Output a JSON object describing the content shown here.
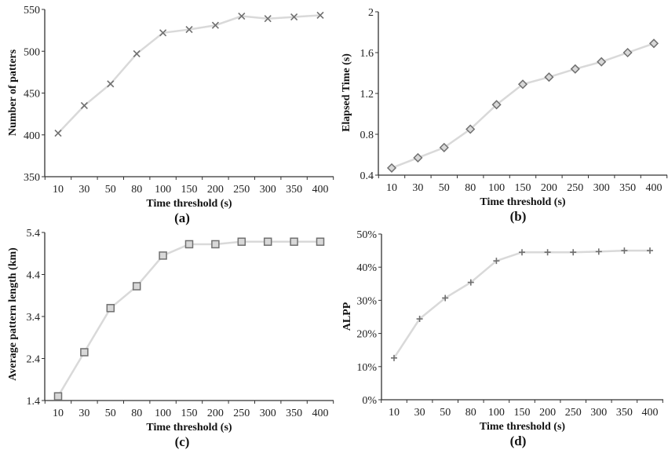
{
  "chart_data": [
    {
      "type": "line",
      "panel_label": "(a)",
      "xlabel": "Time threshold (s)",
      "ylabel": "Number of patters",
      "categories": [
        "10",
        "30",
        "50",
        "80",
        "100",
        "150",
        "200",
        "250",
        "300",
        "350",
        "400"
      ],
      "values": [
        402,
        435,
        461,
        497,
        522,
        526,
        531,
        542,
        539,
        541,
        543
      ],
      "ylim": [
        350,
        550
      ],
      "yticks": [
        350,
        400,
        450,
        500,
        550
      ],
      "ytick_labels": [
        "350",
        "400",
        "450",
        "500",
        "550"
      ],
      "marker": "x-cross",
      "grid": false,
      "line_color": "#d9d9d9",
      "marker_color": "#707070"
    },
    {
      "type": "line",
      "panel_label": "(b)",
      "xlabel": "Time threshold (s)",
      "ylabel": "Elapsed Time (s)",
      "categories": [
        "10",
        "30",
        "50",
        "80",
        "100",
        "150",
        "200",
        "250",
        "300",
        "350",
        "400"
      ],
      "values": [
        0.47,
        0.57,
        0.67,
        0.85,
        1.09,
        1.29,
        1.36,
        1.44,
        1.51,
        1.6,
        1.69
      ],
      "ylim": [
        0.4,
        2.0
      ],
      "yticks": [
        0.4,
        0.8,
        1.2,
        1.6,
        2.0
      ],
      "ytick_labels": [
        "0.4",
        "0.8",
        "1.2",
        "1.6",
        "2"
      ],
      "marker": "diamond",
      "grid": false,
      "line_color": "#d9d9d9",
      "marker_color": "#707070"
    },
    {
      "type": "line",
      "panel_label": "(c)",
      "xlabel": "Time threshold (s)",
      "ylabel": "Average pattern length (km)",
      "categories": [
        "10",
        "30",
        "50",
        "80",
        "100",
        "150",
        "200",
        "250",
        "300",
        "350",
        "400"
      ],
      "values": [
        1.5,
        2.55,
        3.6,
        4.12,
        4.85,
        5.12,
        5.12,
        5.18,
        5.18,
        5.18,
        5.18
      ],
      "ylim": [
        1.4,
        5.4
      ],
      "yticks": [
        1.4,
        2.4,
        3.4,
        4.4,
        5.4
      ],
      "ytick_labels": [
        "1.4",
        "2.4",
        "3.4",
        "4.4",
        "5.4"
      ],
      "marker": "square",
      "grid": false,
      "line_color": "#d9d9d9",
      "marker_color": "#707070"
    },
    {
      "type": "line",
      "panel_label": "(d)",
      "xlabel": "Time threshold (s)",
      "ylabel": "ALPP",
      "categories": [
        "10",
        "30",
        "50",
        "80",
        "100",
        "150",
        "200",
        "250",
        "300",
        "350",
        "400"
      ],
      "values": [
        12.6,
        24.4,
        30.7,
        35.4,
        41.9,
        44.5,
        44.5,
        44.5,
        44.7,
        45.0,
        45.0
      ],
      "ylim": [
        0,
        50
      ],
      "yticks": [
        0,
        10,
        20,
        30,
        40,
        50
      ],
      "ytick_labels": [
        "0%",
        "10%",
        "20%",
        "30%",
        "40%",
        "50%"
      ],
      "marker": "plus",
      "grid": false,
      "line_color": "#d9d9d9",
      "marker_color": "#707070"
    }
  ]
}
